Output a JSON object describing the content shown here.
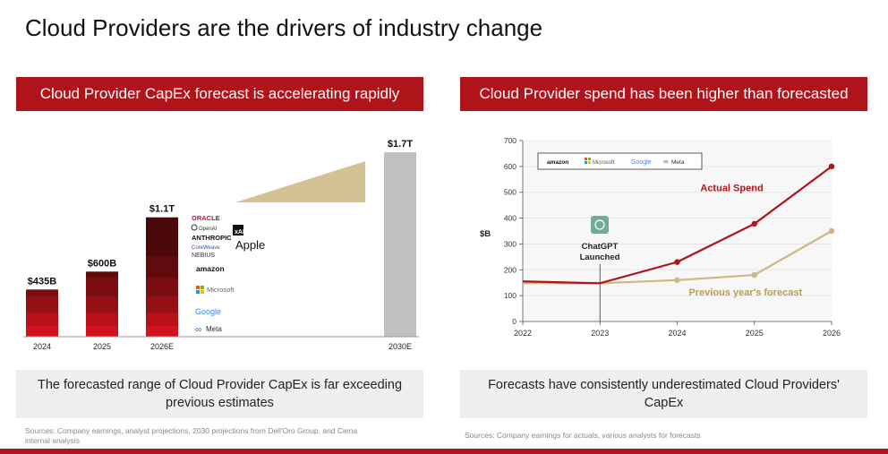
{
  "page": {
    "title": "Cloud Providers are the drivers of industry change"
  },
  "left_panel": {
    "banner": "Cloud Provider CapEx forecast is accelerating rapidly",
    "caption": "The forecasted range of Cloud Provider CapEx is far exceeding previous estimates",
    "source": "Sources: Company earnings, analyst projections, 2030 projections from Dell'Oro Group, and Ciena internal analysis",
    "logos": [
      "ORACLE",
      "OpenAI",
      "xAI",
      "ANTHROPIC",
      "CoreWeave",
      "Apple",
      "NEBIUS",
      "amazon",
      "Microsoft",
      "Google",
      "Meta"
    ]
  },
  "right_panel": {
    "banner": "Cloud Provider spend has been higher than forecasted",
    "caption": "Forecasts have consistently underestimated Cloud Providers' CapEx",
    "source": "Sources: Company earnings for actuals, various analysts for forecasts",
    "legend_logos": [
      "amazon",
      "Microsoft",
      "Google",
      "Meta"
    ],
    "chatgpt_label": "ChatGPT Launched"
  },
  "colors": {
    "accent": "#b0141b",
    "forecast": "#cdb783",
    "gray_bar": "#c0c0c0"
  },
  "chart_data": [
    {
      "type": "bar",
      "categories": [
        "2024",
        "2025",
        "2026E",
        "2030E"
      ],
      "values": [
        435,
        600,
        1100,
        1700
      ],
      "value_labels": [
        "$435B",
        "$600B",
        "$1.1T",
        "$1.7T"
      ],
      "units": "USD billions",
      "stacked_shading": "red gradient segments",
      "title": "",
      "xlabel": "",
      "ylabel": ""
    },
    {
      "type": "line",
      "x": [
        2022,
        2023,
        2024,
        2025,
        2026
      ],
      "ylabel": "$B",
      "ylim": [
        0,
        700
      ],
      "yticks": [
        0,
        100,
        200,
        300,
        400,
        500,
        600,
        700
      ],
      "series": [
        {
          "name": "Actual Spend",
          "x": [
            2022,
            2023,
            2024,
            2025,
            2026
          ],
          "values": [
            155,
            148,
            230,
            378,
            600
          ],
          "color": "#b0141b"
        },
        {
          "name": "Previous year's forecast",
          "x": [
            2022,
            2023,
            2024,
            2025,
            2026
          ],
          "values": [
            148,
            148,
            160,
            180,
            350
          ],
          "color": "#cdb783"
        }
      ],
      "annotations": [
        {
          "x": 2023,
          "text": "ChatGPT Launched"
        }
      ],
      "grid": true
    }
  ]
}
